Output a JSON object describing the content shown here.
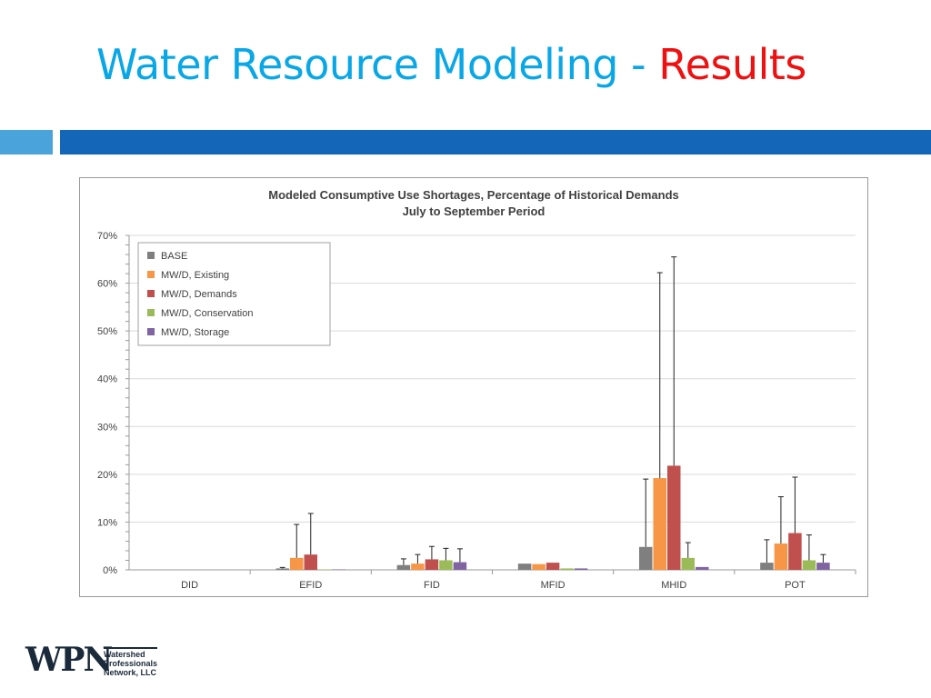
{
  "slide": {
    "title_main": "Water Resource Modeling",
    "title_separator": "-",
    "title_accent": "Results",
    "title_color": "#0aa7e6",
    "accent_color": "#ee1111",
    "bar_light": "#4aa3da",
    "bar_dark": "#1466b8"
  },
  "logo": {
    "mark": "WPN",
    "lines": [
      "Watershed",
      "Professionals",
      "Network, LLC"
    ]
  },
  "chart_data": {
    "type": "bar",
    "title": "Modeled Consumptive Use Shortages, Percentage of Historical Demands",
    "subtitle": "July to September Period",
    "categories": [
      "DID",
      "EFID",
      "FID",
      "MFID",
      "MHID",
      "POT"
    ],
    "ylim": [
      0,
      70
    ],
    "yticks": [
      "0%",
      "10%",
      "20%",
      "30%",
      "40%",
      "50%",
      "60%",
      "70%"
    ],
    "grid": true,
    "legend_position": "top-left",
    "series": [
      {
        "name": "BASE",
        "color": "#7f7f7f",
        "values": [
          0,
          0.3,
          1.0,
          1.3,
          4.8,
          1.5
        ],
        "error_high": [
          0,
          0.5,
          2.3,
          1.3,
          19.0,
          6.3
        ]
      },
      {
        "name": "MW/D, Existing",
        "color": "#f79646",
        "values": [
          0,
          2.5,
          1.3,
          1.2,
          19.2,
          5.5
        ],
        "error_high": [
          0,
          9.5,
          3.2,
          1.2,
          62.2,
          15.3
        ]
      },
      {
        "name": "MW/D, Demands",
        "color": "#c0504d",
        "values": [
          0,
          3.2,
          2.2,
          1.5,
          21.8,
          7.7
        ],
        "error_high": [
          0,
          11.8,
          4.9,
          1.5,
          65.5,
          19.4
        ]
      },
      {
        "name": "MW/D, Conservation",
        "color": "#9bbb59",
        "values": [
          0,
          0.1,
          2.0,
          0.3,
          2.5,
          2.0
        ],
        "error_high": [
          0,
          0.1,
          4.5,
          0.3,
          5.7,
          7.3
        ]
      },
      {
        "name": "MW/D, Storage",
        "color": "#8064a2",
        "values": [
          0,
          0.1,
          1.6,
          0.3,
          0.6,
          1.5
        ],
        "error_high": [
          0,
          0.1,
          4.4,
          0.3,
          0.6,
          3.2
        ]
      }
    ]
  }
}
